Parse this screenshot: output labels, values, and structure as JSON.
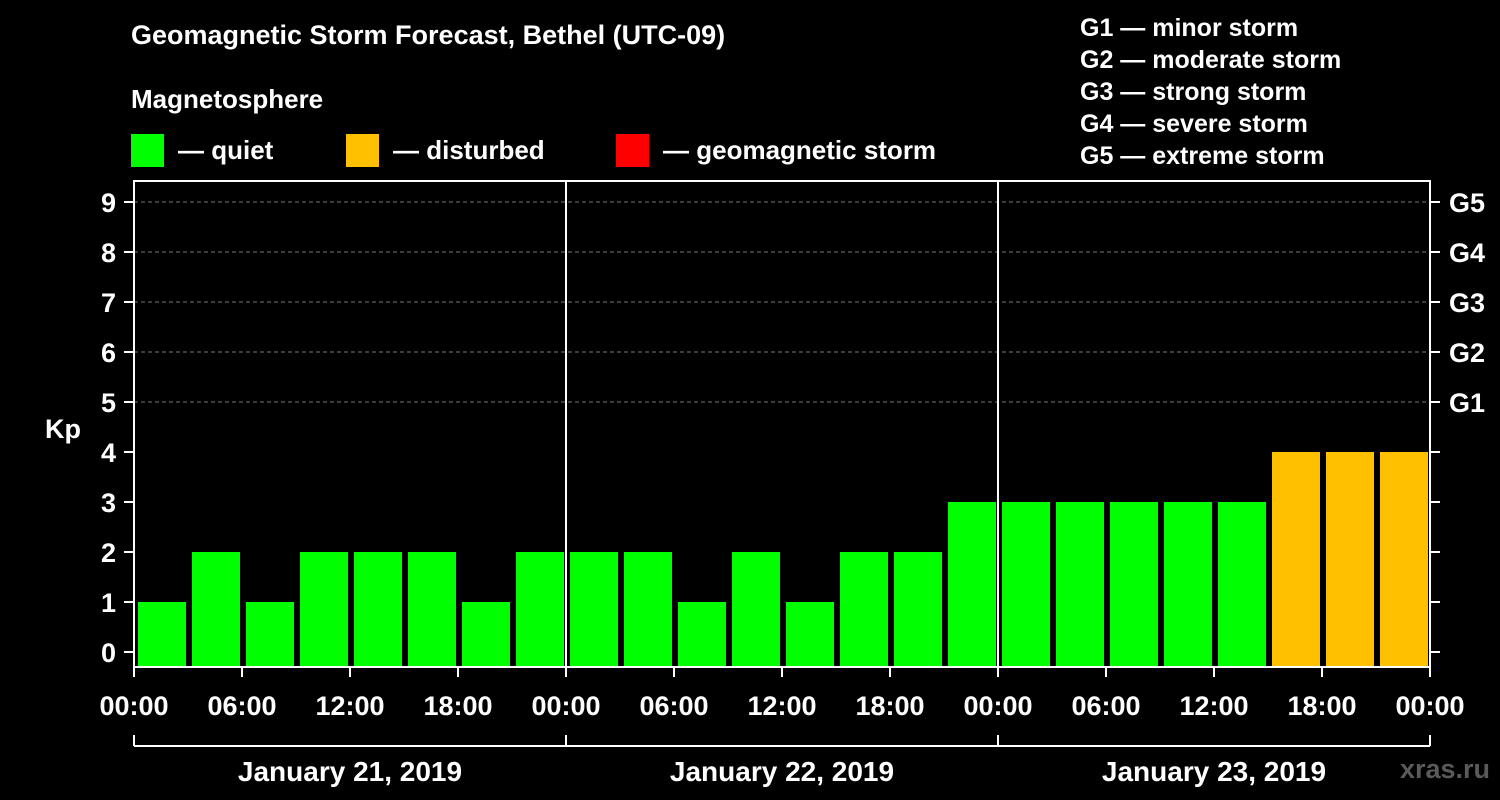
{
  "header": {
    "title": "Geomagnetic Storm Forecast, Bethel (UTC-09)",
    "subtitle": "Magnetosphere"
  },
  "legend": [
    {
      "label": "— quiet",
      "color": "#00ff00"
    },
    {
      "label": "— disturbed",
      "color": "#ffc000"
    },
    {
      "label": "— geomagnetic storm",
      "color": "#ff0000"
    }
  ],
  "storm_levels": [
    "G1 — minor storm",
    "G2 — moderate storm",
    "G3 — strong storm",
    "G4 — severe storm",
    "G5 — extreme storm"
  ],
  "watermark": "xras.ru",
  "chart_data": {
    "type": "bar",
    "title": "Geomagnetic Storm Forecast, Bethel (UTC-09)",
    "ylabel": "Kp",
    "ylim": [
      0,
      9
    ],
    "y_ticks": [
      0,
      1,
      2,
      3,
      4,
      5,
      6,
      7,
      8,
      9
    ],
    "right_ticks": [
      {
        "value": 5,
        "label": "G1"
      },
      {
        "value": 6,
        "label": "G2"
      },
      {
        "value": 7,
        "label": "G3"
      },
      {
        "value": 8,
        "label": "G4"
      },
      {
        "value": 9,
        "label": "G5"
      }
    ],
    "x_tick_labels": [
      "00:00",
      "06:00",
      "12:00",
      "18:00",
      "00:00",
      "06:00",
      "12:00",
      "18:00",
      "00:00",
      "06:00",
      "12:00",
      "18:00",
      "00:00"
    ],
    "days": [
      "January 21, 2019",
      "January 22, 2019",
      "January 23, 2019"
    ],
    "bars_per_day": 8,
    "values": [
      1,
      2,
      1,
      2,
      2,
      2,
      1,
      2,
      2,
      2,
      1,
      2,
      1,
      2,
      2,
      3,
      3,
      3,
      3,
      3,
      3,
      4,
      4,
      4
    ],
    "categories": [
      "quiet",
      "quiet",
      "quiet",
      "quiet",
      "quiet",
      "quiet",
      "quiet",
      "quiet",
      "quiet",
      "quiet",
      "quiet",
      "quiet",
      "quiet",
      "quiet",
      "quiet",
      "quiet",
      "quiet",
      "quiet",
      "quiet",
      "quiet",
      "quiet",
      "disturbed",
      "disturbed",
      "disturbed"
    ],
    "grid": true,
    "grid_from": 5,
    "colors": {
      "quiet": "#00ff00",
      "disturbed": "#ffc000",
      "storm": "#ff0000"
    }
  }
}
